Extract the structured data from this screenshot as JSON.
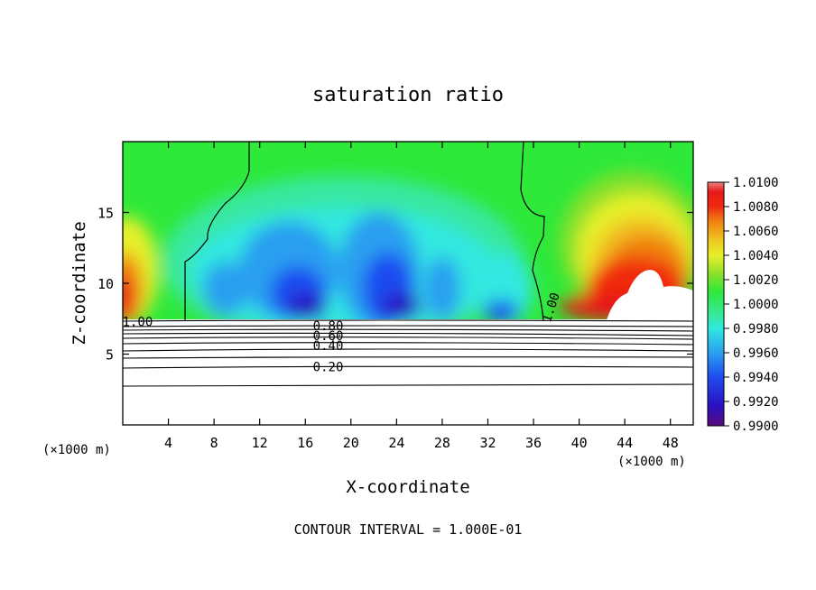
{
  "chart_data": {
    "type": "heatmap",
    "title": "saturation ratio",
    "xlabel": "X-coordinate",
    "ylabel": "Z-coordinate",
    "x_unit": "(×1000 m)",
    "xlim": [
      0,
      50
    ],
    "ylim": [
      0,
      20
    ],
    "x_ticks": [
      4,
      8,
      12,
      16,
      20,
      24,
      28,
      32,
      36,
      40,
      44,
      48
    ],
    "y_ticks": [
      5,
      10,
      15
    ],
    "footer": "CONTOUR INTERVAL = 1.000E-01",
    "colorbar": {
      "ticks": [
        "1.0100",
        "1.0080",
        "1.0060",
        "1.0040",
        "1.0020",
        "1.0000",
        "0.9980",
        "0.9960",
        "0.9940",
        "0.9920",
        "0.9900"
      ],
      "range": [
        0.99,
        1.01
      ],
      "colors": [
        "#5a0a7a",
        "#2a10c0",
        "#1f4cf0",
        "#2a9ff0",
        "#30e8e0",
        "#38e8a0",
        "#2ee83a",
        "#88e02c",
        "#e8f02a",
        "#f0c020",
        "#f08010",
        "#f02a10",
        "#e81818",
        "#f08080"
      ]
    },
    "contour_labels": [
      {
        "text": "0.20",
        "x": 18.0,
        "z": 4.1
      },
      {
        "text": "0.40",
        "x": 18.0,
        "z": 5.6
      },
      {
        "text": "0.60",
        "x": 18.0,
        "z": 6.3
      },
      {
        "text": "0.80",
        "x": 18.0,
        "z": 7.0
      },
      {
        "text": "1.00",
        "x": 1.3,
        "z": 7.3
      },
      {
        "text": "1.00",
        "x": 37.5,
        "z": 8.3
      }
    ]
  }
}
